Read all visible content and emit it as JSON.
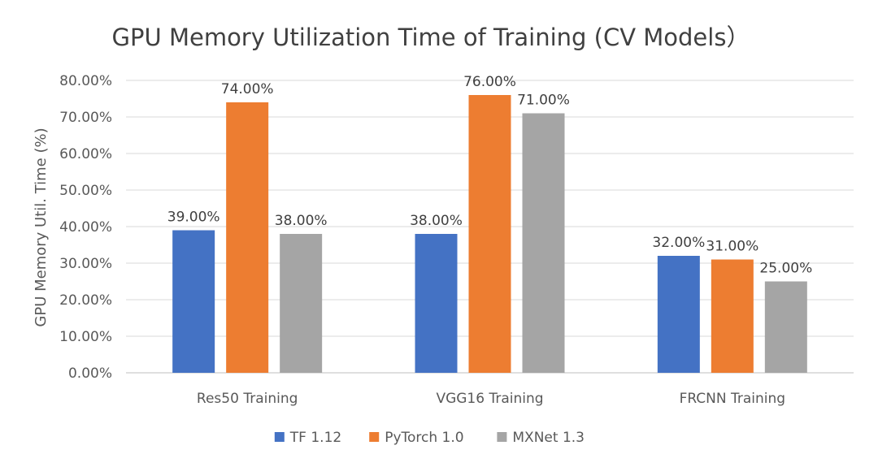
{
  "chart_data": {
    "type": "bar",
    "title": "GPU Memory Utilization Time of Training (CV Models）",
    "xlabel": "",
    "ylabel": "GPU Memory Util. Time (%)",
    "ylim": [
      0,
      80
    ],
    "ytick_step": 10,
    "ytick_labels": [
      "0.00%",
      "10.00%",
      "20.00%",
      "30.00%",
      "40.00%",
      "50.00%",
      "60.00%",
      "70.00%",
      "80.00%"
    ],
    "grid": true,
    "legend_position": "bottom-center",
    "categories": [
      "Res50 Training",
      "VGG16 Training",
      "FRCNN Training"
    ],
    "series": [
      {
        "name": "TF 1.12",
        "color": "#4472C4",
        "values": [
          39,
          38,
          32
        ],
        "labels": [
          "39.00%",
          "38.00%",
          "32.00%"
        ]
      },
      {
        "name": "PyTorch 1.0",
        "color": "#ED7D31",
        "values": [
          74,
          76,
          31
        ],
        "labels": [
          "74.00%",
          "76.00%",
          "31.00%"
        ]
      },
      {
        "name": "MXNet 1.3",
        "color": "#A5A5A5",
        "values": [
          38,
          71,
          25
        ],
        "labels": [
          "38.00%",
          "71.00%",
          "25.00%"
        ]
      }
    ]
  }
}
